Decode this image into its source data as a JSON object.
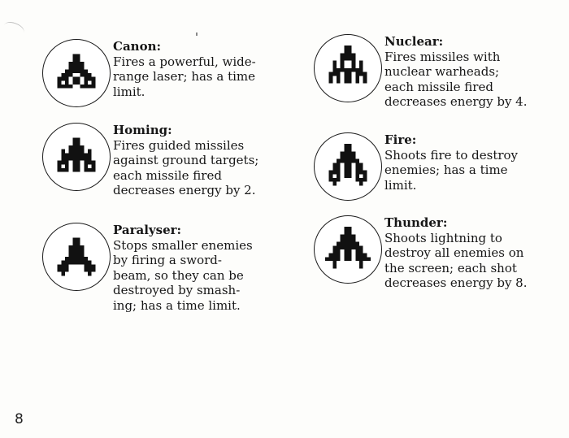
{
  "page_number": "8",
  "weapons": [
    {
      "title": "Canon:",
      "desc": "Fires a powerful, wide-\nrange laser; has a time\nlimit.",
      "icon": "canon-ship-icon"
    },
    {
      "title": "Homing:",
      "desc": "Fires guided missiles\nagainst ground targets;\neach missile fired\ndecreases energy by 2.",
      "icon": "homing-ship-icon"
    },
    {
      "title": "Paralyser:",
      "desc": "Stops smaller enemies\nby firing a sword-\nbeam, so they can be\ndestroyed by smash-\ning; has a time limit.",
      "icon": "paralyser-ship-icon"
    },
    {
      "title": "Nuclear:",
      "desc": "Fires missiles with\nnuclear warheads;\neach missile fired\ndecreases energy by 4.",
      "icon": "nuclear-ship-icon"
    },
    {
      "title": "Fire:",
      "desc": "Shoots fire to destroy\nenemies; has a time\nlimit.",
      "icon": "fire-ship-icon"
    },
    {
      "title": "Thunder:",
      "desc": "Shoots lightning to\ndestroy all enemies on\nthe screen; each shot\ndecreases energy by 8.",
      "icon": "thunder-ship-icon"
    }
  ]
}
